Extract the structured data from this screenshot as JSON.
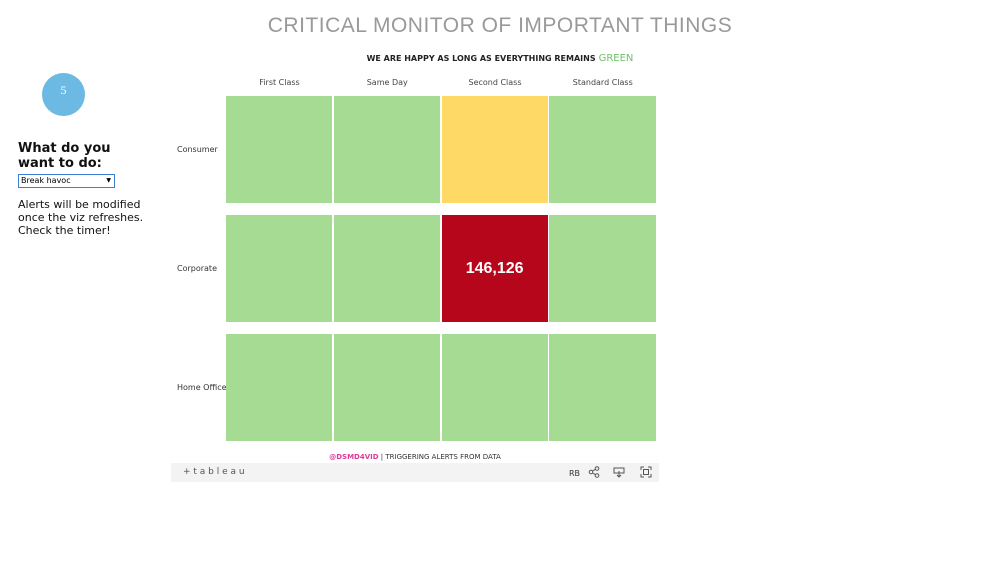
{
  "header": {
    "title": "CRITICAL MONITOR OF IMPORTANT THINGS",
    "subtitle": "WE ARE HAPPY AS LONG AS EVERYTHING REMAINS",
    "subtitle_accent": "GREEN"
  },
  "sidebar": {
    "timer": "5",
    "question": "What do you want to do:",
    "select": "Break havoc",
    "note": "Alerts will be modified once the viz refreshes. Check the timer!"
  },
  "grid": {
    "columns": [
      "First Class",
      "Same Day",
      "Second Class",
      "Standard Class"
    ],
    "rows": [
      {
        "label": "Consumer",
        "cells": [
          {
            "color": "#a6db94"
          },
          {
            "color": "#a6db94"
          },
          {
            "color": "#ffd966"
          },
          {
            "color": "#a6db94"
          }
        ]
      },
      {
        "label": "Corporate",
        "cells": [
          {
            "color": "#a6db94"
          },
          {
            "color": "#a6db94"
          },
          {
            "color": "#b5061b",
            "text": "146,126"
          },
          {
            "color": "#a6db94"
          }
        ]
      },
      {
        "label": "Home Office",
        "cells": [
          {
            "color": "#a6db94"
          },
          {
            "color": "#a6db94"
          },
          {
            "color": "#a6db94"
          },
          {
            "color": "#a6db94"
          }
        ]
      }
    ]
  },
  "footer": {
    "handle": "@DSMD4VID",
    "text": "| TRIGGERING ALERTS FROM DATA"
  },
  "toolbar": {
    "logo": "+ t a b l e a u",
    "user": "RB"
  }
}
